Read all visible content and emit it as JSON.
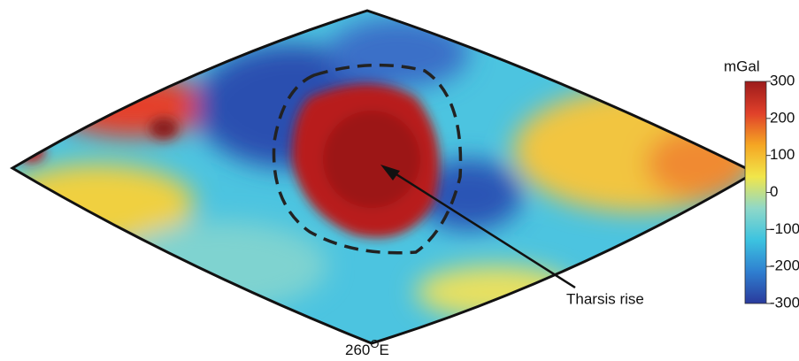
{
  "map": {
    "projection": "sinusoidal",
    "annotation": "Tharsis rise",
    "longitude_label": {
      "number": "260",
      "sup": "O",
      "suffix": "E"
    },
    "colorbar": {
      "title": "mGal",
      "range": [
        -300,
        300
      ],
      "ticks": [
        300,
        200,
        100,
        0,
        -100,
        -200,
        -300
      ],
      "colors": [
        "#2a3a9c",
        "#2f7fd0",
        "#3cc3e0",
        "#8fd8c8",
        "#f1e64a",
        "#f5a623",
        "#e0402a",
        "#9c1b1b"
      ]
    }
  }
}
